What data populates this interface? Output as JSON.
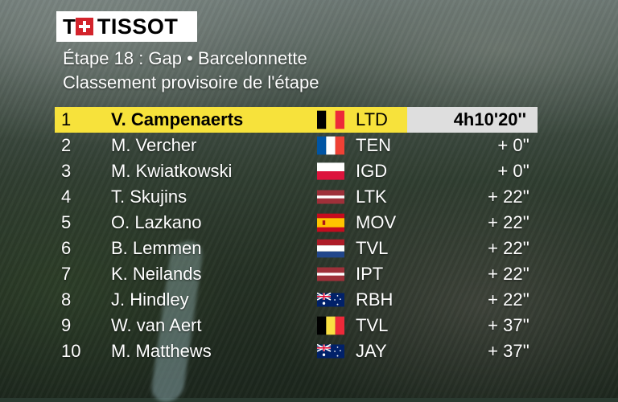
{
  "brand": {
    "logo_text": "TISSOT",
    "logo_prefix": "T"
  },
  "header": {
    "stage": "Étape 18 : Gap • Barcelonnette",
    "subtitle": "Classement provisoire de l'étape"
  },
  "rows": [
    {
      "rank": "1",
      "name": "V. Campenaerts",
      "flag": "belgium-flag-icon",
      "team": "LTD",
      "gap": "4h10'20''"
    },
    {
      "rank": "2",
      "name": "M. Vercher",
      "flag": "france-flag-icon",
      "team": "TEN",
      "gap": "+ 0''"
    },
    {
      "rank": "3",
      "name": "M. Kwiatkowski",
      "flag": "poland-flag-icon",
      "team": "IGD",
      "gap": "+ 0''"
    },
    {
      "rank": "4",
      "name": "T. Skujins",
      "flag": "latvia-flag-icon",
      "team": "LTK",
      "gap": "+ 22''"
    },
    {
      "rank": "5",
      "name": "O. Lazkano",
      "flag": "spain-flag-icon",
      "team": "MOV",
      "gap": "+ 22''"
    },
    {
      "rank": "6",
      "name": "B. Lemmen",
      "flag": "netherlands-flag-icon",
      "team": "TVL",
      "gap": "+ 22''"
    },
    {
      "rank": "7",
      "name": "K. Neilands",
      "flag": "latvia-flag-icon",
      "team": "IPT",
      "gap": "+ 22''"
    },
    {
      "rank": "8",
      "name": "J. Hindley",
      "flag": "australia-flag-icon",
      "team": "RBH",
      "gap": "+ 22''"
    },
    {
      "rank": "9",
      "name": "W. van Aert",
      "flag": "belgium-flag-icon",
      "team": "TVL",
      "gap": "+ 37''"
    },
    {
      "rank": "10",
      "name": "M. Matthews",
      "flag": "australia-flag-icon",
      "team": "JAY",
      "gap": "+ 37''"
    }
  ],
  "colors": {
    "leader_bar": "#f7e23b",
    "leader_time_bar": "#dedede",
    "text": "#ffffff",
    "logo_red": "#d3232b"
  }
}
